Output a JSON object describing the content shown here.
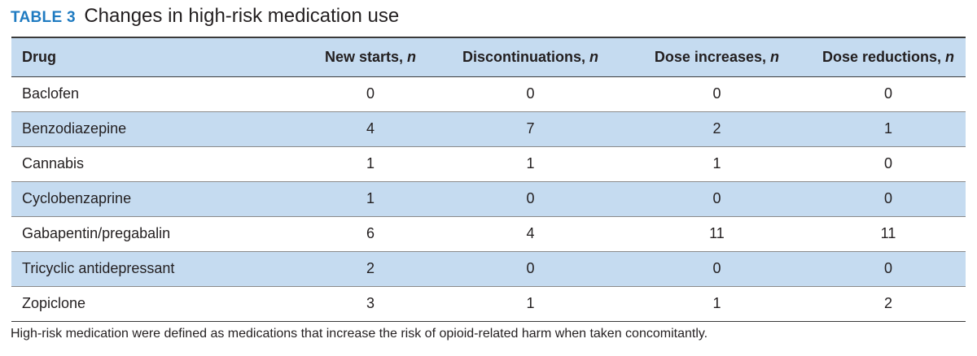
{
  "table": {
    "label": "TABLE 3",
    "title": "Changes in high-risk medication use",
    "columns": [
      {
        "text": "Drug",
        "italic_suffix": ""
      },
      {
        "text": "New starts, ",
        "italic_suffix": "n"
      },
      {
        "text": "Discontinuations, ",
        "italic_suffix": "n"
      },
      {
        "text": "Dose increases, ",
        "italic_suffix": "n"
      },
      {
        "text": "Dose reductions, ",
        "italic_suffix": "n"
      }
    ],
    "rows": [
      {
        "drug": "Baclofen",
        "values": [
          "0",
          "0",
          "0",
          "0"
        ]
      },
      {
        "drug": "Benzodiazepine",
        "values": [
          "4",
          "7",
          "2",
          "1"
        ]
      },
      {
        "drug": "Cannabis",
        "values": [
          "1",
          "1",
          "1",
          "0"
        ]
      },
      {
        "drug": "Cyclobenzaprine",
        "values": [
          "1",
          "0",
          "0",
          "0"
        ]
      },
      {
        "drug": "Gabapentin/pregabalin",
        "values": [
          "6",
          "4",
          "11",
          "11"
        ]
      },
      {
        "drug": "Tricyclic antidepressant",
        "values": [
          "2",
          "0",
          "0",
          "0"
        ]
      },
      {
        "drug": "Zopiclone",
        "values": [
          "3",
          "1",
          "1",
          "2"
        ]
      }
    ],
    "footnote": "High-risk medication were defined as medications that increase the risk of opioid-related harm when taken concomitantly."
  },
  "colors": {
    "label_blue": "#1f7bc1",
    "row_shade": "#c5dbf0",
    "text": "#231f20"
  }
}
